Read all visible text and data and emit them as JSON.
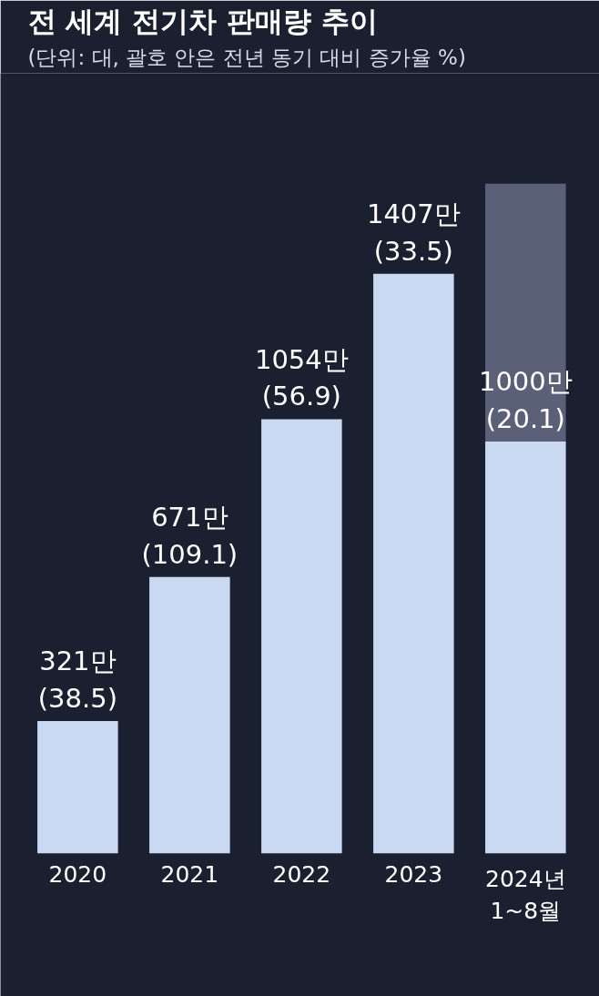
{
  "chart_data": {
    "type": "bar",
    "title": "전 세계 전기차 판매량 추이",
    "subtitle": "(단위: 대, 괄호 안은 전년 동기 대비 증가율 %)",
    "categories": [
      "2020",
      "2021",
      "2022",
      "2023",
      "2024년\n1~8월"
    ],
    "stacked": true,
    "series": [
      {
        "color": "#c9d9f1",
        "values": [
          321,
          671,
          1054,
          1407,
          1000
        ],
        "value_labels": [
          "321만\n(38.5)",
          "671만\n(109.1)",
          "1054만\n(56.9)",
          "1407만\n(33.5)",
          "1000만\n(20.1)"
        ]
      },
      {
        "color": "#5b6079",
        "values": [
          null,
          null,
          null,
          null,
          626
        ]
      }
    ],
    "grid": false
  }
}
